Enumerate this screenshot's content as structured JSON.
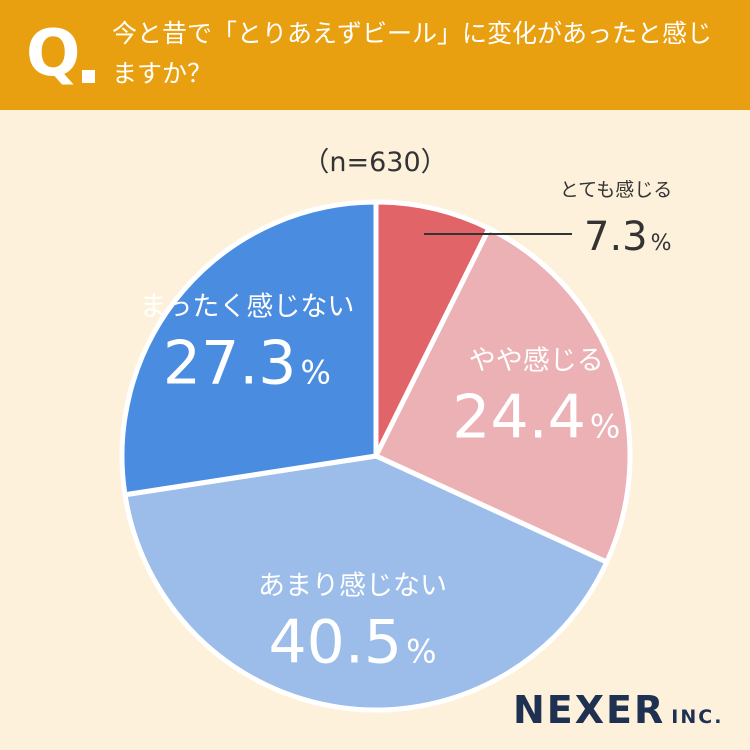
{
  "header": {
    "q_label": "Q",
    "question": "今と昔で「とりあえずビール」に変化があったと感じますか？",
    "background_color": "#E9A010"
  },
  "sample_label": "（n=630）",
  "chart_data": {
    "type": "pie",
    "start_angle_deg": 0,
    "direction": "clockwise",
    "slices": [
      {
        "label": "とても感じる",
        "value": 7.3,
        "display": "7.3",
        "unit": "%",
        "color": "#E06468",
        "text_color": "#333333",
        "callout": true
      },
      {
        "label": "やや感じる",
        "value": 24.4,
        "display": "24.4",
        "unit": "%",
        "color": "#EBB1B5",
        "text_color": "#ffffff",
        "callout": false
      },
      {
        "label": "あまり感じない",
        "value": 40.5,
        "display": "40.5",
        "unit": "%",
        "color": "#9CBDE9",
        "text_color": "#ffffff",
        "callout": false
      },
      {
        "label": "まったく感じない",
        "value": 27.3,
        "display": "27.3",
        "unit": "%",
        "color": "#4A8CDF",
        "text_color": "#ffffff",
        "callout": false
      }
    ]
  },
  "logo": {
    "main": "NEXER",
    "sub": "INC."
  }
}
